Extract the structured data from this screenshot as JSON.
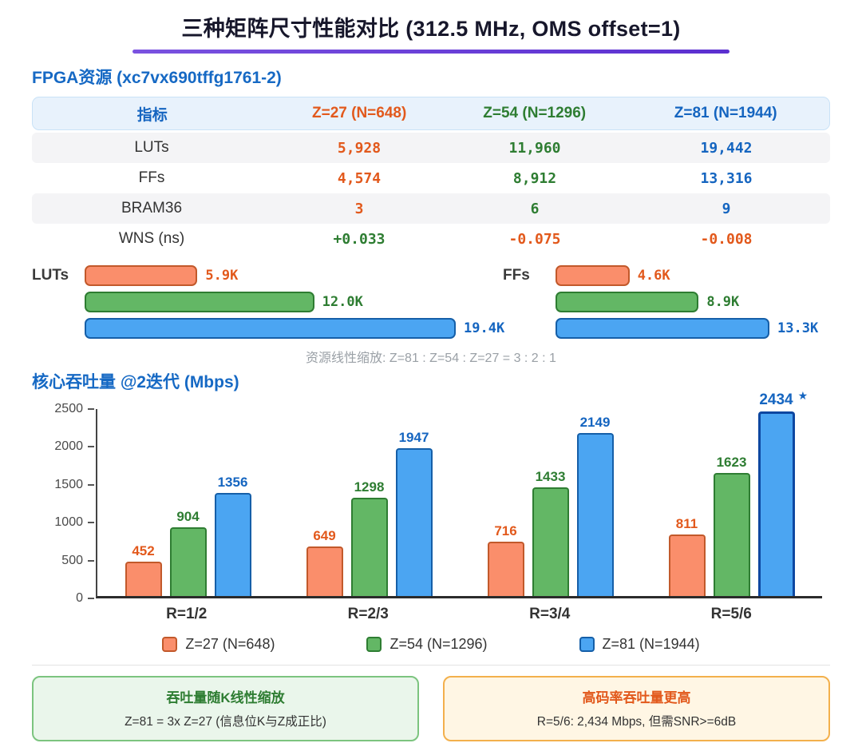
{
  "page": {
    "title": "三种矩阵尺寸性能对比 (312.5 MHz, OMS offset=1)"
  },
  "colors": {
    "orange": {
      "fill": "#FA8E6B",
      "stroke": "#C2592B",
      "text": "#E2591C"
    },
    "green": {
      "fill": "#63B765",
      "stroke": "#2E7D32",
      "text": "#2E7D32"
    },
    "blue": {
      "fill": "#4BA5F2",
      "stroke": "#155FA8",
      "text": "#1565C0"
    },
    "accent_purple": "#6A41D8",
    "section_blue": "#1669C4",
    "highlight_border": "#0D47A1"
  },
  "fpga": {
    "title": "FPGA资源 (xc7vx690tffg1761-2)",
    "table": {
      "headers": [
        {
          "label": "指标",
          "color": "#1565C0"
        },
        {
          "label": "Z=27 (N=648)",
          "color": "#E2591C"
        },
        {
          "label": "Z=54 (N=1296)",
          "color": "#2E7D32"
        },
        {
          "label": "Z=81 (N=1944)",
          "color": "#1565C0"
        }
      ],
      "rows": [
        {
          "metric": "LUTs",
          "values": [
            {
              "text": "5,928",
              "color": "#E2591C"
            },
            {
              "text": "11,960",
              "color": "#2E7D32"
            },
            {
              "text": "19,442",
              "color": "#1565C0"
            }
          ]
        },
        {
          "metric": "FFs",
          "values": [
            {
              "text": "4,574",
              "color": "#E2591C"
            },
            {
              "text": "8,912",
              "color": "#2E7D32"
            },
            {
              "text": "13,316",
              "color": "#1565C0"
            }
          ]
        },
        {
          "metric": "BRAM36",
          "values": [
            {
              "text": "3",
              "color": "#E2591C"
            },
            {
              "text": "6",
              "color": "#2E7D32"
            },
            {
              "text": "9",
              "color": "#1565C0"
            }
          ]
        },
        {
          "metric": "WNS (ns)",
          "values": [
            {
              "text": "+0.033",
              "color": "#2E7D32"
            },
            {
              "text": "-0.075",
              "color": "#E2591C"
            },
            {
              "text": "-0.008",
              "color": "#E2591C"
            }
          ]
        }
      ]
    },
    "mini_charts": [
      {
        "label": "LUTs",
        "bars": [
          {
            "value": 5.9,
            "label": "5.9K",
            "series": "orange"
          },
          {
            "value": 12.0,
            "label": "12.0K",
            "series": "green"
          },
          {
            "value": 19.4,
            "label": "19.4K",
            "series": "blue"
          }
        ]
      },
      {
        "label": "FFs",
        "bars": [
          {
            "value": 4.6,
            "label": "4.6K",
            "series": "orange"
          },
          {
            "value": 8.9,
            "label": "8.9K",
            "series": "green"
          },
          {
            "value": 13.3,
            "label": "13.3K",
            "series": "blue"
          }
        ]
      }
    ],
    "caption": "资源线性缩放: Z=81 : Z=54 : Z=27 = 3 : 2 : 1"
  },
  "chart_data": {
    "type": "bar",
    "title": "核心吞吐量 @2迭代 (Mbps)",
    "categories": [
      "R=1/2",
      "R=2/3",
      "R=3/4",
      "R=5/6"
    ],
    "series": [
      {
        "name": "Z=27 (N=648)",
        "color": "orange",
        "values": [
          452,
          649,
          716,
          811
        ]
      },
      {
        "name": "Z=54 (N=1296)",
        "color": "green",
        "values": [
          904,
          1298,
          1433,
          1623
        ]
      },
      {
        "name": "Z=81 (N=1944)",
        "color": "blue",
        "values": [
          1356,
          1947,
          2149,
          2434
        ]
      }
    ],
    "ylim": [
      0,
      2500
    ],
    "yticks": [
      0,
      500,
      1000,
      1500,
      2000,
      2500
    ],
    "xlabel": "",
    "ylabel": "",
    "grid": false,
    "legend_position": "bottom",
    "highlight": {
      "series_index": 2,
      "category_index": 3,
      "marker": "★"
    }
  },
  "callouts": [
    {
      "title": "吞吐量随K线性缩放",
      "body": "Z=81 = 3x Z=27 (信息位K与Z成正比)",
      "border": "#7CC47F",
      "bg": "#EAF6EB",
      "title_color": "#2E7D32"
    },
    {
      "title": "高码率吞吐量更高",
      "body": "R=5/6: 2,434 Mbps, 但需SNR>=6dB",
      "border": "#F3B04C",
      "bg": "#FFF6E4",
      "title_color": "#E2591C"
    }
  ]
}
